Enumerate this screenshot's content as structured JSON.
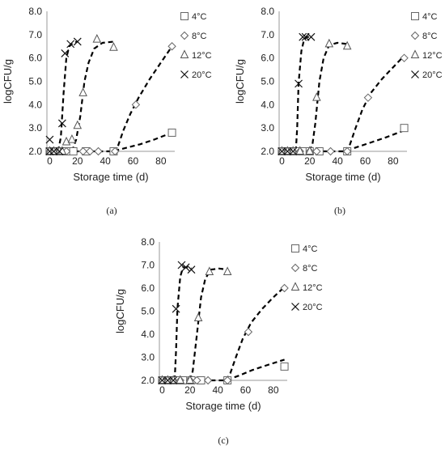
{
  "chart_data": [
    {
      "panel_label": "(a)",
      "type": "scatter",
      "xlabel": "Storage time (d)",
      "ylabel": "logCFU/g",
      "xlim": [
        -2,
        90
      ],
      "ylim": [
        2.0,
        8.0
      ],
      "xticks": [
        "0",
        "20",
        "40",
        "60",
        "80"
      ],
      "yticks": [
        "2.0",
        "3.0",
        "4.0",
        "5.0",
        "6.0",
        "7.0",
        "8.0"
      ],
      "legend_position": "right",
      "series": [
        {
          "name": "4°C",
          "marker": "square",
          "points": [
            [
              0,
              2.0
            ],
            [
              2,
              2.0
            ],
            [
              5,
              2.0
            ],
            [
              8,
              2.0
            ],
            [
              12,
              2.0
            ],
            [
              17,
              2.0
            ],
            [
              26,
              2.0
            ],
            [
              46,
              2.0
            ],
            [
              88,
              2.8
            ]
          ],
          "fit": [
            [
              0,
              2.0
            ],
            [
              45,
              2.0
            ],
            [
              55,
              2.15
            ],
            [
              65,
              2.3
            ],
            [
              75,
              2.5
            ],
            [
              88,
              2.8
            ]
          ]
        },
        {
          "name": "8°C",
          "marker": "diamond",
          "points": [
            [
              0,
              2.0
            ],
            [
              3,
              2.0
            ],
            [
              7,
              2.0
            ],
            [
              12,
              2.0
            ],
            [
              24,
              2.0
            ],
            [
              29,
              2.0
            ],
            [
              35,
              2.0
            ],
            [
              47,
              2.0
            ],
            [
              62,
              4.0
            ],
            [
              88,
              6.5
            ]
          ],
          "fit": [
            [
              45,
              2.0
            ],
            [
              49,
              2.2
            ],
            [
              53,
              2.9
            ],
            [
              58,
              3.6
            ],
            [
              64,
              4.3
            ],
            [
              72,
              5.1
            ],
            [
              80,
              5.8
            ],
            [
              88,
              6.5
            ]
          ]
        },
        {
          "name": "12°C",
          "marker": "triangle",
          "points": [
            [
              0,
              2.0
            ],
            [
              3,
              2.0
            ],
            [
              7,
              2.0
            ],
            [
              9,
              2.0
            ],
            [
              12,
              2.4
            ],
            [
              16,
              2.5
            ],
            [
              20,
              3.1
            ],
            [
              24,
              4.5
            ],
            [
              34,
              6.8
            ],
            [
              46,
              6.45
            ]
          ],
          "fit": [
            [
              16,
              2.0
            ],
            [
              19,
              2.5
            ],
            [
              22,
              3.5
            ],
            [
              25,
              5.0
            ],
            [
              28,
              5.8
            ],
            [
              32,
              6.4
            ],
            [
              38,
              6.65
            ],
            [
              46,
              6.7
            ]
          ]
        },
        {
          "name": "20°C",
          "marker": "cross",
          "points": [
            [
              0,
              2.0
            ],
            [
              0,
              2.5
            ],
            [
              3,
              2.0
            ],
            [
              7,
              2.0
            ],
            [
              9,
              3.2
            ],
            [
              11,
              6.2
            ],
            [
              15,
              6.6
            ],
            [
              20,
              6.7
            ]
          ],
          "fit": [
            [
              6,
              2.0
            ],
            [
              8,
              2.6
            ],
            [
              10,
              4.5
            ],
            [
              12,
              6.0
            ],
            [
              14,
              6.5
            ],
            [
              17,
              6.65
            ],
            [
              20,
              6.7
            ]
          ]
        }
      ]
    },
    {
      "panel_label": "(b)",
      "type": "scatter",
      "xlabel": "Storage time (d)",
      "ylabel": "logCFU/g",
      "xlim": [
        -2,
        90
      ],
      "ylim": [
        2.0,
        8.0
      ],
      "xticks": [
        "0",
        "20",
        "40",
        "60",
        "80"
      ],
      "yticks": [
        "2.0",
        "3.0",
        "4.0",
        "5.0",
        "6.0",
        "7.0",
        "8.0"
      ],
      "legend_position": "right",
      "series": [
        {
          "name": "4°C",
          "marker": "square",
          "points": [
            [
              0,
              2.0
            ],
            [
              3,
              2.0
            ],
            [
              7,
              2.0
            ],
            [
              11,
              2.0
            ],
            [
              15,
              2.0
            ],
            [
              20,
              2.0
            ],
            [
              27,
              2.0
            ],
            [
              47,
              2.0
            ],
            [
              88,
              3.0
            ]
          ],
          "fit": [
            [
              0,
              2.0
            ],
            [
              45,
              2.0
            ],
            [
              55,
              2.2
            ],
            [
              65,
              2.4
            ],
            [
              75,
              2.6
            ],
            [
              88,
              2.9
            ]
          ]
        },
        {
          "name": "8°C",
          "marker": "diamond",
          "points": [
            [
              0,
              2.0
            ],
            [
              4,
              2.0
            ],
            [
              8,
              2.0
            ],
            [
              13,
              2.0
            ],
            [
              20,
              2.0
            ],
            [
              25,
              2.0
            ],
            [
              35,
              2.0
            ],
            [
              47,
              2.0
            ],
            [
              62,
              4.3
            ],
            [
              88,
              6.0
            ]
          ],
          "fit": [
            [
              45,
              2.0
            ],
            [
              49,
              2.3
            ],
            [
              53,
              3.0
            ],
            [
              58,
              3.8
            ],
            [
              64,
              4.5
            ],
            [
              72,
              5.1
            ],
            [
              80,
              5.6
            ],
            [
              88,
              6.1
            ]
          ]
        },
        {
          "name": "12°C",
          "marker": "triangle",
          "points": [
            [
              0,
              2.0
            ],
            [
              4,
              2.0
            ],
            [
              8,
              2.0
            ],
            [
              13,
              2.0
            ],
            [
              20,
              2.0
            ],
            [
              25,
              4.3
            ],
            [
              34,
              6.6
            ],
            [
              47,
              6.5
            ]
          ],
          "fit": [
            [
              20,
              2.0
            ],
            [
              22,
              2.3
            ],
            [
              24,
              3.2
            ],
            [
              27,
              5.0
            ],
            [
              30,
              6.0
            ],
            [
              34,
              6.55
            ],
            [
              40,
              6.65
            ],
            [
              47,
              6.6
            ]
          ]
        },
        {
          "name": "20°C",
          "marker": "cross",
          "points": [
            [
              0,
              2.0
            ],
            [
              4,
              2.0
            ],
            [
              8,
              2.0
            ],
            [
              12,
              4.9
            ],
            [
              15,
              6.9
            ],
            [
              17,
              6.9
            ],
            [
              21,
              6.9
            ]
          ],
          "fit": [
            [
              10,
              2.0
            ],
            [
              11,
              3.0
            ],
            [
              12,
              4.9
            ],
            [
              14,
              6.3
            ],
            [
              16,
              6.8
            ],
            [
              18,
              6.9
            ],
            [
              21,
              6.9
            ]
          ]
        }
      ]
    },
    {
      "panel_label": "(c)",
      "type": "scatter",
      "xlabel": "Storage time (d)",
      "ylabel": "logCFU/g",
      "xlim": [
        -2,
        90
      ],
      "ylim": [
        2.0,
        8.0
      ],
      "xticks": [
        "0",
        "20",
        "40",
        "60",
        "80"
      ],
      "yticks": [
        "2.0",
        "3.0",
        "4.0",
        "5.0",
        "6.0",
        "7.0",
        "8.0"
      ],
      "legend_position": "right",
      "series": [
        {
          "name": "4°C",
          "marker": "square",
          "points": [
            [
              0,
              2.0
            ],
            [
              3,
              2.0
            ],
            [
              7,
              2.0
            ],
            [
              11,
              2.0
            ],
            [
              15,
              2.0
            ],
            [
              21,
              2.0
            ],
            [
              28,
              2.0
            ],
            [
              47,
              2.0
            ],
            [
              88,
              2.6
            ]
          ],
          "fit": [
            [
              0,
              2.0
            ],
            [
              46,
              2.0
            ],
            [
              55,
              2.2
            ],
            [
              65,
              2.45
            ],
            [
              75,
              2.65
            ],
            [
              88,
              2.9
            ]
          ]
        },
        {
          "name": "8°C",
          "marker": "diamond",
          "points": [
            [
              0,
              2.0
            ],
            [
              4,
              2.0
            ],
            [
              8,
              2.0
            ],
            [
              13,
              2.0
            ],
            [
              20,
              2.0
            ],
            [
              25,
              2.0
            ],
            [
              33,
              2.0
            ],
            [
              47,
              2.0
            ],
            [
              62,
              4.1
            ],
            [
              88,
              6.0
            ]
          ],
          "fit": [
            [
              46,
              2.0
            ],
            [
              49,
              2.3
            ],
            [
              53,
              3.0
            ],
            [
              58,
              3.8
            ],
            [
              64,
              4.5
            ],
            [
              72,
              5.1
            ],
            [
              80,
              5.6
            ],
            [
              88,
              6.05
            ]
          ]
        },
        {
          "name": "12°C",
          "marker": "triangle",
          "points": [
            [
              0,
              2.0
            ],
            [
              4,
              2.0
            ],
            [
              8,
              2.0
            ],
            [
              13,
              2.0
            ],
            [
              20,
              2.0
            ],
            [
              26,
              4.7
            ],
            [
              34,
              6.7
            ],
            [
              47,
              6.7
            ]
          ],
          "fit": [
            [
              20,
              2.0
            ],
            [
              22,
              2.4
            ],
            [
              25,
              4.0
            ],
            [
              28,
              5.6
            ],
            [
              31,
              6.4
            ],
            [
              35,
              6.8
            ],
            [
              41,
              6.85
            ],
            [
              47,
              6.8
            ]
          ]
        },
        {
          "name": "20°C",
          "marker": "cross",
          "points": [
            [
              0,
              2.0
            ],
            [
              4,
              2.0
            ],
            [
              8,
              2.0
            ],
            [
              10,
              5.1
            ],
            [
              14,
              7.0
            ],
            [
              17,
              6.9
            ],
            [
              21,
              6.8
            ]
          ],
          "fit": [
            [
              9,
              2.0
            ],
            [
              10,
              3.3
            ],
            [
              11,
              5.1
            ],
            [
              13,
              6.5
            ],
            [
              15,
              6.9
            ],
            [
              18,
              6.9
            ],
            [
              21,
              6.85
            ]
          ]
        }
      ]
    }
  ]
}
